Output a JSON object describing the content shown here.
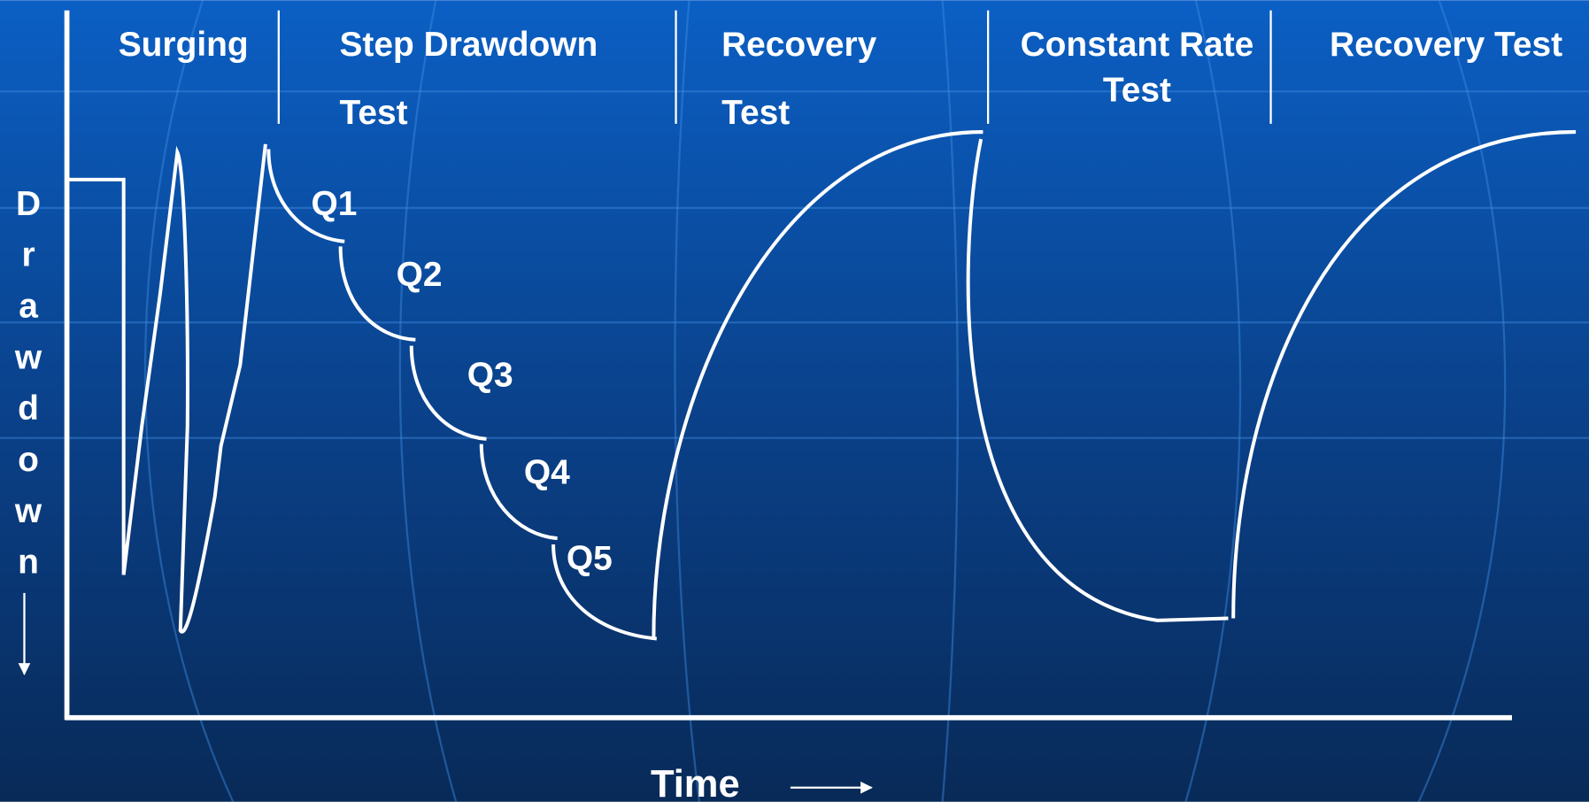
{
  "phases": [
    {
      "lines": [
        "Surging"
      ]
    },
    {
      "lines": [
        "Step Drawdown",
        "Test"
      ]
    },
    {
      "lines": [
        "Recovery",
        "Test"
      ]
    },
    {
      "lines": [
        "Constant Rate",
        "Test"
      ]
    },
    {
      "lines": [
        "Recovery Test"
      ]
    }
  ],
  "steps": [
    "Q1",
    "Q2",
    "Q3",
    "Q4",
    "Q5"
  ],
  "y_axis_label": "Drawdown",
  "x_axis_label": "Time"
}
